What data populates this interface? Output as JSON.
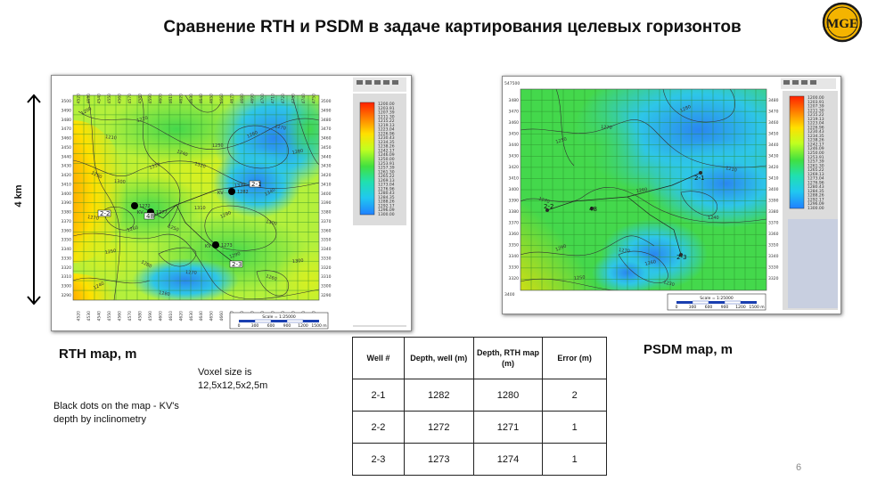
{
  "slide": {
    "title": "Сравнение RTH и PSDM в задаче картирования целевых горизонтов",
    "page_number": "6",
    "logo_text": "MGE"
  },
  "scale_arrow": {
    "label": "4 km"
  },
  "rth_map": {
    "caption": "RTH map, m",
    "scale_text": "Scale = 1:25000",
    "scale_ticks": [
      "0",
      "300",
      "600",
      "900",
      "1200",
      "1500 m"
    ],
    "x_ticks": [
      "4520",
      "4530",
      "4540",
      "4550",
      "4560",
      "4570",
      "4580",
      "4590",
      "4600",
      "4610",
      "4620",
      "4630",
      "4640",
      "4650",
      "4660",
      "4670",
      "4680",
      "4690",
      "4700",
      "4710",
      "4720",
      "4730",
      "4740",
      "4750"
    ],
    "y_ticks": [
      "3500",
      "3490",
      "3480",
      "3470",
      "3460",
      "3450",
      "3440",
      "3430",
      "3420",
      "3410",
      "3400",
      "3390",
      "3380",
      "3370",
      "3360",
      "3350",
      "3340",
      "3330",
      "3320",
      "3310",
      "3300",
      "3290"
    ],
    "contours": [
      "1200",
      "1210",
      "1220",
      "1240",
      "1250",
      "1260",
      "1270",
      "1280",
      "1290",
      "1300",
      "1310",
      "1320",
      "1330",
      "1340",
      "1270",
      "1260",
      "1250",
      "1310",
      "1290",
      "1300",
      "1250",
      "1280",
      "1270",
      "1290",
      "1260",
      "1300",
      "1240",
      "1280"
    ],
    "wells": [
      {
        "name": "2-1",
        "depth": "1282",
        "tag": "KV"
      },
      {
        "name": "2-2",
        "depth": "1272",
        "tag": "KV"
      },
      {
        "name": "2-3",
        "depth": "1273",
        "tag": "KV"
      },
      {
        "name": "48",
        "depth": "1277",
        "tag": "KV"
      }
    ],
    "legend_values": [
      "1200.00",
      "1203.91",
      "1207.39",
      "1211.30",
      "1215.22",
      "1219.13",
      "1223.04",
      "1226.96",
      "1230.43",
      "1234.35",
      "1238.26",
      "1242.17",
      "1246.09",
      "1250.00",
      "1253.91",
      "1257.39",
      "1261.30",
      "1265.22",
      "1269.13",
      "1273.04",
      "1276.96",
      "1280.43",
      "1284.35",
      "1288.26",
      "1292.17",
      "1296.09",
      "1300.00"
    ]
  },
  "psdm_map": {
    "caption": "PSDM map, m",
    "corner_label": "547500",
    "corner_label_2": "3400",
    "scale_text": "Scale = 1:25000",
    "scale_ticks": [
      "0",
      "300",
      "600",
      "900",
      "1200",
      "1500 m"
    ],
    "y_ticks": [
      "3480",
      "3470",
      "3460",
      "3450",
      "3440",
      "3430",
      "3420",
      "3410",
      "3400",
      "3390",
      "3380",
      "3370",
      "3360",
      "3350",
      "3340",
      "3330",
      "3320"
    ],
    "contours": [
      "1280",
      "1270",
      "1250",
      "1210",
      "1260",
      "1270",
      "1240",
      "1290",
      "1270",
      "1260",
      "1230",
      "1250"
    ],
    "wells": [
      {
        "name": "2-1"
      },
      {
        "name": "2-2"
      },
      {
        "name": "2-3"
      },
      {
        "name": "48"
      }
    ],
    "legend_values": [
      "1200.00",
      "1203.91",
      "1207.39",
      "1211.30",
      "1215.22",
      "1219.13",
      "1223.04",
      "1226.96",
      "1230.43",
      "1234.35",
      "1238.26",
      "1242.17",
      "1246.09",
      "1250.00",
      "1253.91",
      "1257.39",
      "1261.30",
      "1265.22",
      "1269.13",
      "1273.04",
      "1276.96",
      "1280.43",
      "1284.35",
      "1288.26",
      "1292.17",
      "1296.09",
      "1300.00"
    ]
  },
  "notes": {
    "voxel": "Voxel size is 12,5x12,5x2,5m",
    "black_dots": "Black dots on the map - KV's depth by inclinometry"
  },
  "table": {
    "headers": [
      "Well #",
      "Depth, well (m)",
      "Depth, RTH map (m)",
      "Error (m)"
    ],
    "rows": [
      [
        "2-1",
        "1282",
        "1280",
        "2"
      ],
      [
        "2-2",
        "1272",
        "1271",
        "1"
      ],
      [
        "2-3",
        "1273",
        "1274",
        "1"
      ]
    ]
  },
  "colors": {
    "legend_gradient": [
      "#ff2000",
      "#ff8000",
      "#ffe000",
      "#c0ff20",
      "#40e040",
      "#20e0b0",
      "#20c8f0",
      "#2080ff"
    ],
    "grid": "#2a8a2a",
    "panel": "#d8d8d8"
  }
}
